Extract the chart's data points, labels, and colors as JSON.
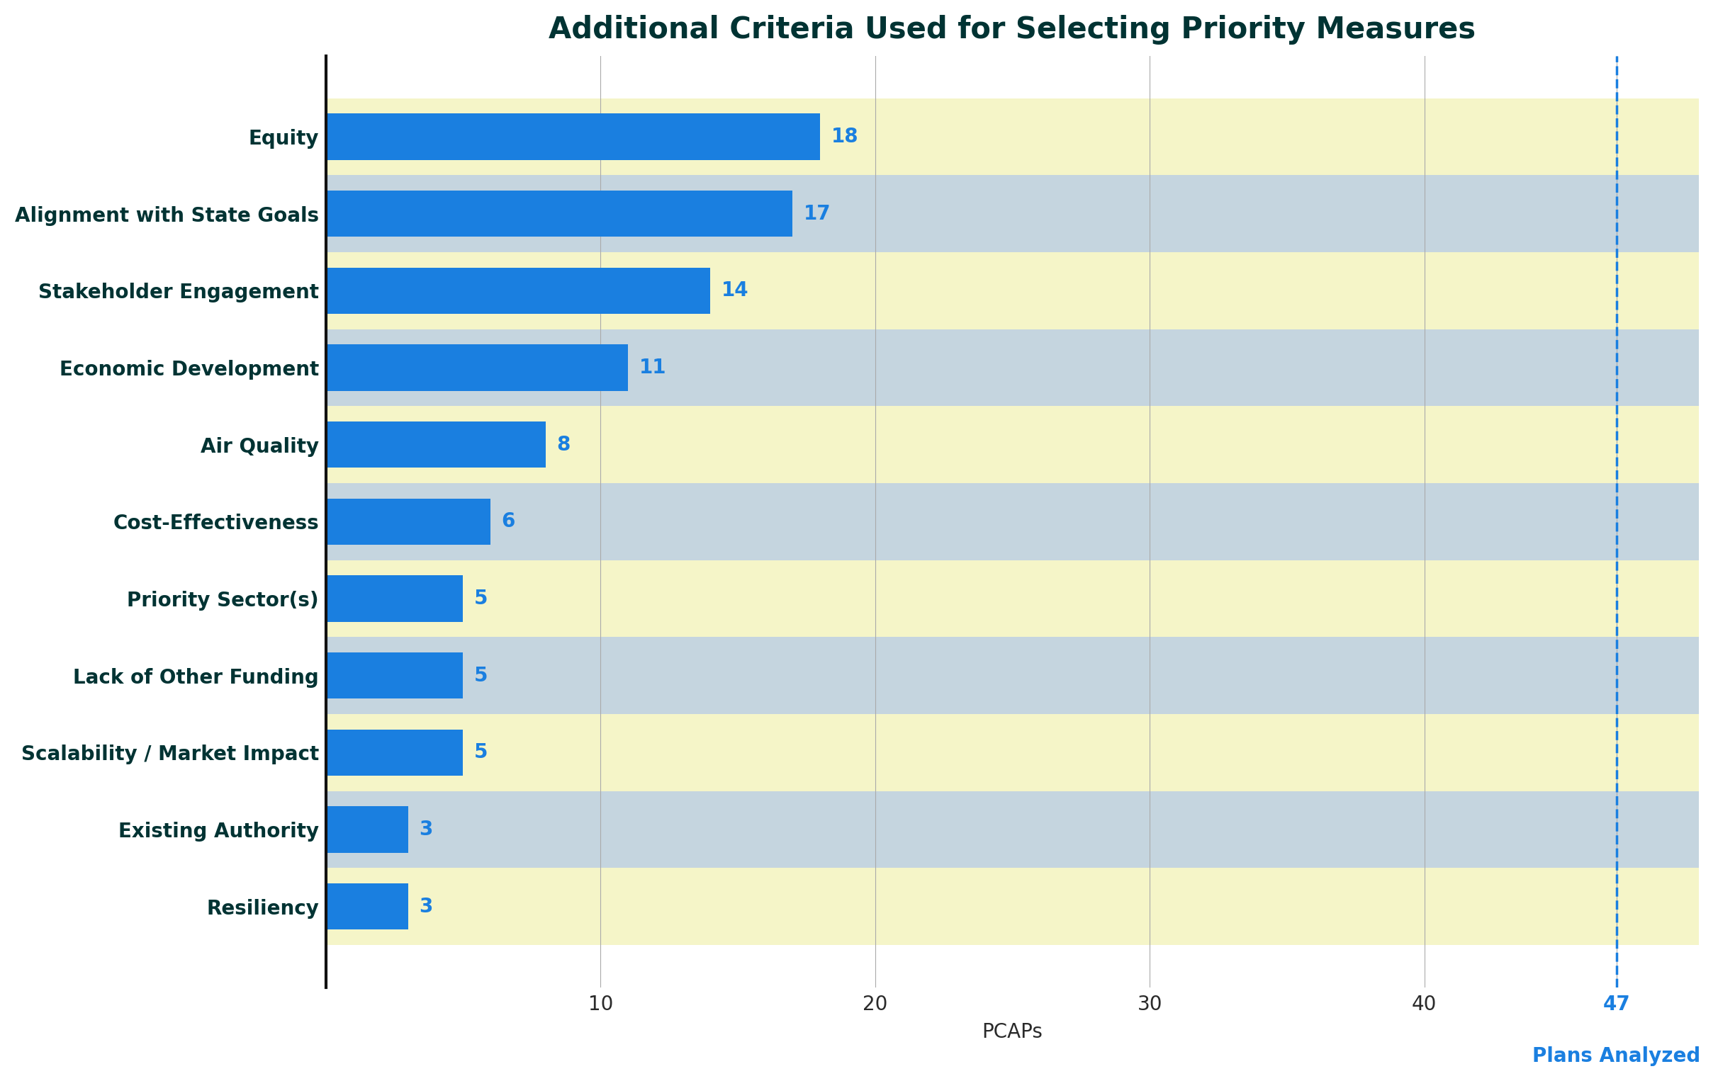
{
  "title": "Additional Criteria Used for Selecting Priority Measures",
  "categories": [
    "Equity",
    "Alignment with State Goals",
    "Stakeholder Engagement",
    "Economic Development",
    "Air Quality",
    "Cost-Effectiveness",
    "Priority Sector(s)",
    "Lack of Other Funding",
    "Scalability / Market Impact",
    "Existing Authority",
    "Resiliency"
  ],
  "values": [
    18,
    17,
    14,
    11,
    8,
    6,
    5,
    5,
    5,
    3,
    3
  ],
  "bar_color": "#1a7fe0",
  "title_color": "#003333",
  "ylabel_color": "#003333",
  "bar_label_color": "#1a7fe0",
  "tick_color": "#2a2a2a",
  "vline_color": "#1a7fe0",
  "xlabel": "PCAPs",
  "xticks": [
    10,
    20,
    30,
    40,
    47
  ],
  "xlim": [
    0,
    50
  ],
  "row_color_even": "#f5f5c8",
  "row_color_odd": "#c5d5df",
  "title_fontsize": 30,
  "bar_label_fontsize": 20,
  "tick_fontsize": 20,
  "xlabel_fontsize": 20,
  "ylabel_fontsize": 20,
  "vline_x": 47,
  "vline_label": "47",
  "vline_label2": "Plans Analyzed",
  "plans_analyzed_color": "#1a7fe0",
  "plans_analyzed_fontsize": 20
}
